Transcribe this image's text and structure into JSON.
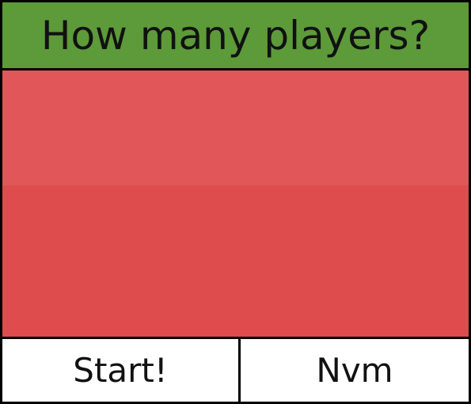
{
  "dialog": {
    "title": "How many players?",
    "start_label": "Start!",
    "cancel_label": "Nvm"
  },
  "colors": {
    "header_bg": "#5d9a39",
    "picker_band_top": "#e05659",
    "picker_band_bottom": "#de4c4e",
    "button_bg": "#ffffff",
    "border": "#000000"
  }
}
